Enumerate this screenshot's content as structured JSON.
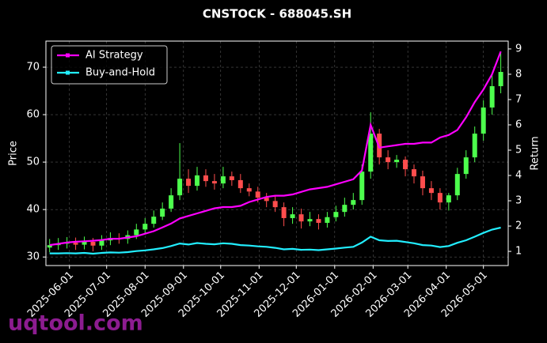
{
  "chart_data": {
    "type": "candlestick",
    "title": "CNSTOCK - 688045.SH",
    "ylabel": "Price",
    "y2label": "Return",
    "watermark": "uqtool.com",
    "x": [
      "2025-05-16",
      "2025-05-23",
      "2025-05-30",
      "2025-06-06",
      "2025-06-13",
      "2025-06-20",
      "2025-06-27",
      "2025-07-04",
      "2025-07-11",
      "2025-07-18",
      "2025-07-25",
      "2025-08-01",
      "2025-08-08",
      "2025-08-15",
      "2025-08-22",
      "2025-08-29",
      "2025-09-05",
      "2025-09-12",
      "2025-09-19",
      "2025-09-26",
      "2025-10-03",
      "2025-10-10",
      "2025-10-17",
      "2025-10-24",
      "2025-10-31",
      "2025-11-07",
      "2025-11-14",
      "2025-11-21",
      "2025-11-28",
      "2025-12-05",
      "2025-12-12",
      "2025-12-19",
      "2025-12-26",
      "2026-01-02",
      "2026-01-09",
      "2026-01-16",
      "2026-01-23",
      "2026-01-30",
      "2026-02-06",
      "2026-02-13",
      "2026-02-20",
      "2026-02-27",
      "2026-03-06",
      "2026-03-13",
      "2026-03-20",
      "2026-03-27",
      "2026-04-03",
      "2026-04-10",
      "2026-04-17",
      "2026-04-24",
      "2026-05-01",
      "2026-05-08",
      "2026-05-15"
    ],
    "open": [
      32.0,
      32.5,
      32.8,
      33.0,
      32.6,
      33.2,
      32.4,
      33.5,
      34.0,
      33.8,
      34.6,
      35.8,
      37.0,
      38.5,
      40.2,
      43.0,
      46.5,
      45.0,
      47.2,
      46.0,
      45.5,
      47.0,
      46.2,
      44.5,
      43.8,
      42.5,
      41.8,
      40.5,
      38.2,
      39.0,
      37.5,
      38.0,
      37.2,
      38.4,
      39.5,
      41.0,
      42.0,
      48.0,
      56.0,
      51.0,
      50.0,
      50.5,
      48.5,
      47.0,
      44.5,
      43.5,
      41.5,
      43.0,
      47.5,
      51.0,
      56.0,
      61.5,
      66.0
    ],
    "high": [
      33.8,
      34.0,
      34.2,
      34.1,
      34.3,
      34.0,
      34.6,
      35.2,
      35.0,
      35.6,
      37.0,
      38.2,
      39.8,
      41.5,
      44.5,
      54.0,
      48.5,
      49.0,
      48.5,
      47.5,
      49.0,
      48.0,
      47.5,
      45.5,
      44.8,
      43.5,
      42.8,
      41.5,
      40.5,
      40.2,
      39.5,
      39.0,
      39.5,
      40.8,
      42.5,
      43.5,
      49.5,
      60.5,
      57.0,
      52.5,
      51.5,
      51.2,
      49.5,
      48.2,
      46.0,
      44.5,
      43.5,
      48.8,
      52.5,
      57.5,
      63.0,
      68.5,
      73.0
    ],
    "low": [
      31.0,
      31.5,
      31.8,
      31.5,
      31.6,
      31.2,
      31.5,
      32.5,
      32.8,
      32.8,
      33.8,
      35.0,
      36.2,
      37.8,
      39.5,
      42.0,
      43.5,
      44.0,
      44.8,
      44.2,
      44.5,
      45.0,
      43.5,
      42.8,
      41.5,
      40.5,
      39.5,
      36.5,
      37.0,
      36.0,
      36.5,
      35.8,
      36.2,
      37.5,
      38.5,
      40.0,
      41.0,
      46.5,
      49.5,
      48.5,
      48.8,
      47.0,
      45.5,
      43.0,
      42.0,
      40.0,
      39.8,
      42.0,
      46.5,
      50.0,
      54.5,
      60.0,
      64.5
    ],
    "close": [
      32.5,
      32.8,
      33.0,
      32.6,
      33.2,
      32.4,
      33.5,
      34.0,
      33.8,
      34.6,
      35.8,
      37.0,
      38.5,
      40.2,
      43.0,
      46.5,
      45.0,
      47.2,
      46.0,
      45.5,
      47.0,
      46.2,
      44.5,
      43.8,
      42.5,
      41.8,
      40.5,
      38.2,
      39.0,
      37.5,
      38.0,
      37.2,
      38.4,
      39.5,
      41.0,
      42.0,
      48.0,
      56.0,
      51.0,
      50.0,
      50.5,
      48.5,
      47.0,
      44.5,
      43.5,
      41.5,
      43.0,
      47.5,
      51.0,
      56.0,
      61.5,
      66.0,
      69.0
    ],
    "up_color": "#4dff4d",
    "down_color": "#ff4d4d",
    "series": [
      {
        "name": "AI Strategy",
        "color": "#ff00ff",
        "axis": "y2",
        "values": [
          1.25,
          1.3,
          1.35,
          1.38,
          1.4,
          1.42,
          1.45,
          1.5,
          1.5,
          1.55,
          1.6,
          1.7,
          1.8,
          1.95,
          2.1,
          2.3,
          2.4,
          2.5,
          2.6,
          2.7,
          2.75,
          2.75,
          2.8,
          2.95,
          3.05,
          3.15,
          3.2,
          3.2,
          3.25,
          3.35,
          3.45,
          3.5,
          3.55,
          3.65,
          3.75,
          3.85,
          4.2,
          6.0,
          5.1,
          5.15,
          5.2,
          5.25,
          5.25,
          5.3,
          5.3,
          5.5,
          5.6,
          5.8,
          6.3,
          6.9,
          7.4,
          8.0,
          8.9
        ]
      },
      {
        "name": "Buy-and-Hold",
        "color": "#22eeff",
        "axis": "y2",
        "values": [
          0.92,
          0.92,
          0.93,
          0.92,
          0.94,
          0.91,
          0.94,
          0.96,
          0.95,
          0.97,
          1.01,
          1.04,
          1.08,
          1.13,
          1.21,
          1.31,
          1.27,
          1.33,
          1.3,
          1.28,
          1.32,
          1.3,
          1.25,
          1.23,
          1.2,
          1.18,
          1.14,
          1.08,
          1.1,
          1.06,
          1.07,
          1.05,
          1.08,
          1.11,
          1.15,
          1.18,
          1.35,
          1.58,
          1.44,
          1.41,
          1.42,
          1.37,
          1.32,
          1.25,
          1.23,
          1.17,
          1.21,
          1.34,
          1.44,
          1.58,
          1.73,
          1.86,
          1.94
        ]
      }
    ],
    "xlim": [
      "2025-05-13",
      "2026-05-21"
    ],
    "xticks": [
      "2025-06-01",
      "2025-07-01",
      "2025-08-01",
      "2025-09-01",
      "2025-10-01",
      "2025-11-01",
      "2025-12-01",
      "2026-01-01",
      "2026-02-01",
      "2026-03-01",
      "2026-04-01",
      "2026-05-01"
    ],
    "ylim": [
      28.2,
      75.5
    ],
    "yticks": [
      30,
      40,
      50,
      60,
      70
    ],
    "y2lim": [
      0.44,
      9.31
    ],
    "y2ticks": [
      1,
      2,
      3,
      4,
      5,
      6,
      7,
      8,
      9
    ],
    "grid": true,
    "legend": "upper left"
  }
}
